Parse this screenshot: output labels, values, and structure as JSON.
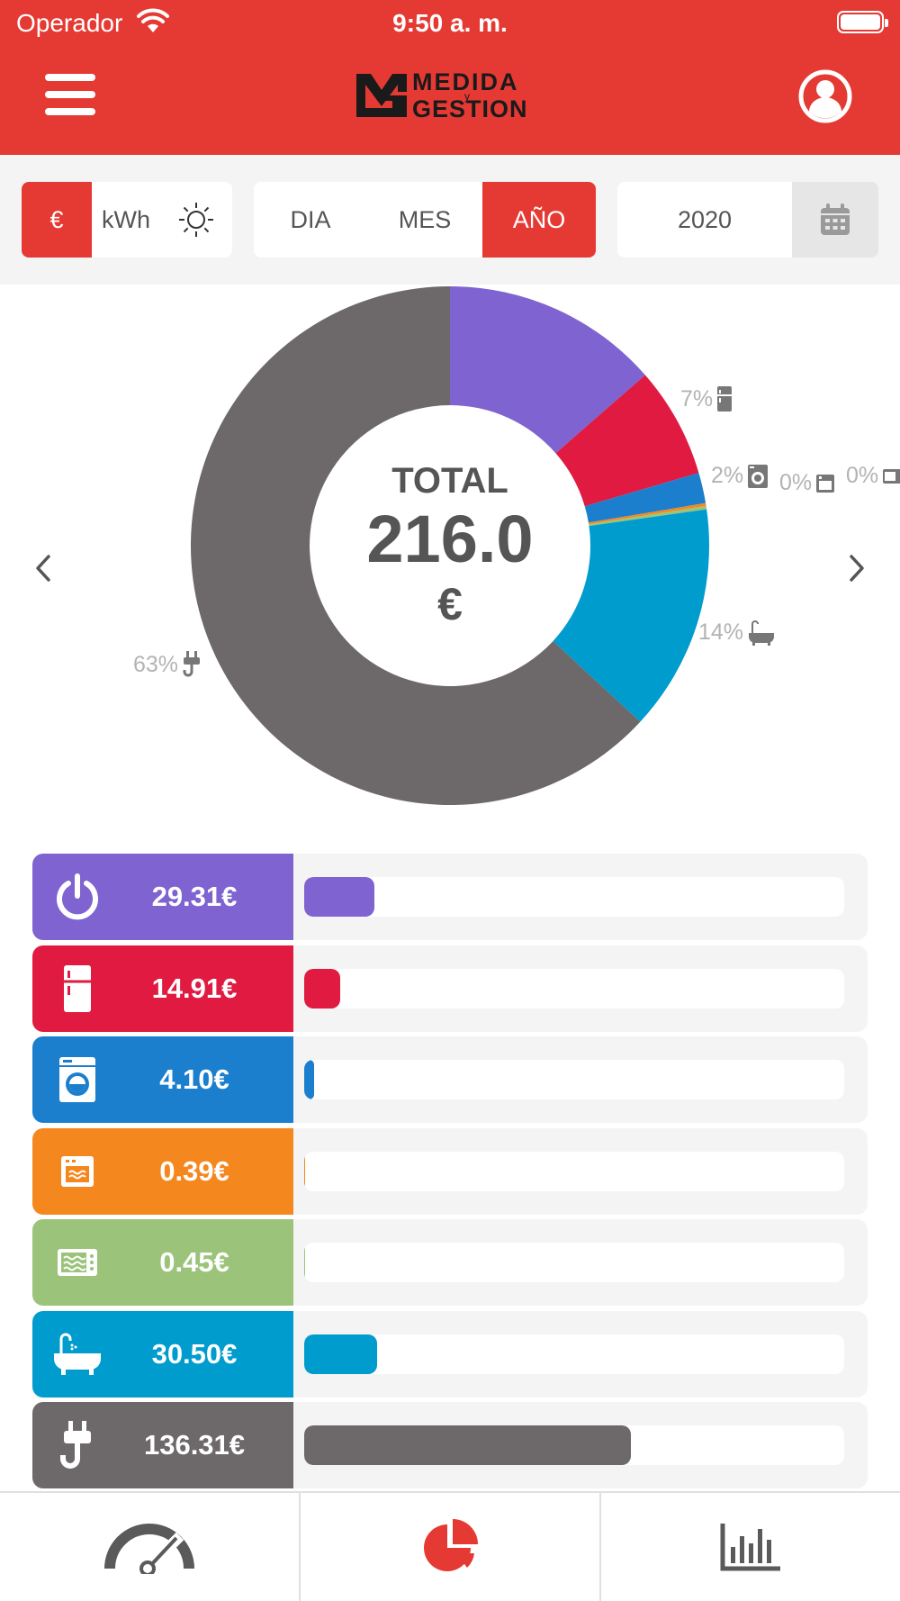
{
  "status_bar": {
    "carrier": "Operador",
    "time": "9:50 a. m."
  },
  "header": {
    "logo_line1": "MEDIDA",
    "logo_y": "y",
    "logo_line2": "GESTION"
  },
  "filters": {
    "unit_options": [
      "€",
      "kWh"
    ],
    "unit_selected": "€",
    "period_options": [
      "DIA",
      "MES",
      "AÑO"
    ],
    "period_selected": "AÑO",
    "year": "2020"
  },
  "donut": {
    "center_label": "TOTAL",
    "center_value": "216.0",
    "center_unit": "€"
  },
  "chart_data": {
    "type": "pie",
    "categories": [
      "standby",
      "fridge",
      "washer",
      "oven",
      "microwave",
      "water-heater",
      "other"
    ],
    "values": [
      29.31,
      14.91,
      4.1,
      0.39,
      0.45,
      30.5,
      136.31
    ],
    "colors": [
      "#7f63d0",
      "#e01a40",
      "#1b7fce",
      "#f5871f",
      "#9bc37a",
      "#009cce",
      "#6d6869"
    ],
    "percent_labels": [
      "",
      "7%",
      "2%",
      "0%",
      "0%",
      "14%",
      "63%"
    ],
    "total": 216.0
  },
  "bars": [
    {
      "value_label": "29.31€",
      "value": 29.31,
      "color": "#7f63d0",
      "icon": "power-icon"
    },
    {
      "value_label": "14.91€",
      "value": 14.91,
      "color": "#e01a40",
      "icon": "fridge-icon"
    },
    {
      "value_label": "4.10€",
      "value": 4.1,
      "color": "#1b7fce",
      "icon": "washing-machine-icon"
    },
    {
      "value_label": "0.39€",
      "value": 0.39,
      "color": "#f5871f",
      "icon": "oven-icon"
    },
    {
      "value_label": "0.45€",
      "value": 0.45,
      "color": "#9bc37a",
      "icon": "microwave-icon"
    },
    {
      "value_label": "30.50€",
      "value": 30.5,
      "color": "#009cce",
      "icon": "bathtub-icon"
    },
    {
      "value_label": "136.31€",
      "value": 136.31,
      "color": "#6d6869",
      "icon": "plug-icon"
    }
  ],
  "bar_max_value": 225,
  "colors": {
    "brand_red": "#e53a33"
  },
  "bottom_nav": [
    "speedometer-icon",
    "pie-chart-icon",
    "bar-chart-icon"
  ]
}
